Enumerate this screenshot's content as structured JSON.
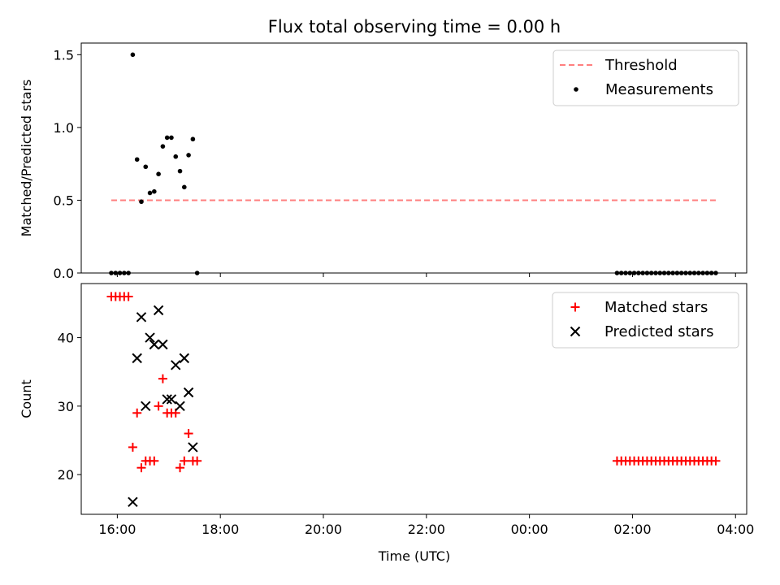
{
  "figure": {
    "title": "Flux total observing time = 0.00 h"
  },
  "chart_data": [
    {
      "type": "line+scatter",
      "panel": "top",
      "xlabel": "",
      "ylabel": "Matched/Predicted stars",
      "xlim": [
        "15:18",
        "04:13"
      ],
      "ylim": [
        0,
        1.58
      ],
      "yticks": [
        0.0,
        0.5,
        1.0,
        1.5
      ],
      "xticks": [
        "16:00",
        "18:00",
        "20:00",
        "22:00",
        "00:00",
        "02:00",
        "04:00"
      ],
      "xticklabels_visible": false,
      "legend_position": "top-right",
      "threshold": {
        "name": "Threshold",
        "color": "#ff7f7f",
        "style": "dashed",
        "y": 0.5,
        "x_range": [
          "15:53",
          "03:37"
        ]
      },
      "series": [
        {
          "name": "Measurements",
          "marker": "dot",
          "color": "#000000",
          "points": [
            [
              "15:53",
              0.0
            ],
            [
              "15:58",
              0.0
            ],
            [
              "16:03",
              0.0
            ],
            [
              "16:08",
              0.0
            ],
            [
              "16:13",
              0.0
            ],
            [
              "16:18",
              1.5
            ],
            [
              "16:23",
              0.78
            ],
            [
              "16:28",
              0.49
            ],
            [
              "16:33",
              0.73
            ],
            [
              "16:38",
              0.55
            ],
            [
              "16:43",
              0.56
            ],
            [
              "16:48",
              0.68
            ],
            [
              "16:53",
              0.87
            ],
            [
              "16:58",
              0.93
            ],
            [
              "17:03",
              0.93
            ],
            [
              "17:08",
              0.8
            ],
            [
              "17:13",
              0.7
            ],
            [
              "17:18",
              0.59
            ],
            [
              "17:23",
              0.81
            ],
            [
              "17:28",
              0.92
            ],
            [
              "17:33",
              0.0
            ],
            [
              "01:42",
              0.0
            ],
            [
              "01:47",
              0.0
            ],
            [
              "01:52",
              0.0
            ],
            [
              "01:57",
              0.0
            ],
            [
              "02:02",
              0.0
            ],
            [
              "02:07",
              0.0
            ],
            [
              "02:12",
              0.0
            ],
            [
              "02:17",
              0.0
            ],
            [
              "02:22",
              0.0
            ],
            [
              "02:27",
              0.0
            ],
            [
              "02:32",
              0.0
            ],
            [
              "02:37",
              0.0
            ],
            [
              "02:42",
              0.0
            ],
            [
              "02:47",
              0.0
            ],
            [
              "02:52",
              0.0
            ],
            [
              "02:57",
              0.0
            ],
            [
              "03:02",
              0.0
            ],
            [
              "03:07",
              0.0
            ],
            [
              "03:12",
              0.0
            ],
            [
              "03:17",
              0.0
            ],
            [
              "03:22",
              0.0
            ],
            [
              "03:27",
              0.0
            ],
            [
              "03:32",
              0.0
            ],
            [
              "03:37",
              0.0
            ]
          ]
        }
      ]
    },
    {
      "type": "scatter",
      "panel": "bottom",
      "xlabel": "Time (UTC)",
      "ylabel": "Count",
      "xlim": [
        "15:18",
        "04:13"
      ],
      "ylim": [
        14.2,
        47.9
      ],
      "yticks": [
        20,
        30,
        40
      ],
      "xticks": [
        "16:00",
        "18:00",
        "20:00",
        "22:00",
        "00:00",
        "02:00",
        "04:00"
      ],
      "legend_position": "top-right",
      "series": [
        {
          "name": "Matched stars",
          "marker": "plus",
          "color": "#ff0000",
          "points": [
            [
              "15:53",
              46
            ],
            [
              "15:58",
              46
            ],
            [
              "16:03",
              46
            ],
            [
              "16:08",
              46
            ],
            [
              "16:13",
              46
            ],
            [
              "16:18",
              24
            ],
            [
              "16:23",
              29
            ],
            [
              "16:28",
              21
            ],
            [
              "16:33",
              22
            ],
            [
              "16:38",
              22
            ],
            [
              "16:43",
              22
            ],
            [
              "16:48",
              30
            ],
            [
              "16:53",
              34
            ],
            [
              "16:58",
              29
            ],
            [
              "17:03",
              29
            ],
            [
              "17:08",
              29
            ],
            [
              "17:13",
              21
            ],
            [
              "17:18",
              22
            ],
            [
              "17:23",
              26
            ],
            [
              "17:28",
              22
            ],
            [
              "17:33",
              22
            ],
            [
              "01:42",
              22
            ],
            [
              "01:47",
              22
            ],
            [
              "01:52",
              22
            ],
            [
              "01:57",
              22
            ],
            [
              "02:02",
              22
            ],
            [
              "02:07",
              22
            ],
            [
              "02:12",
              22
            ],
            [
              "02:17",
              22
            ],
            [
              "02:22",
              22
            ],
            [
              "02:27",
              22
            ],
            [
              "02:32",
              22
            ],
            [
              "02:37",
              22
            ],
            [
              "02:42",
              22
            ],
            [
              "02:47",
              22
            ],
            [
              "02:52",
              22
            ],
            [
              "02:57",
              22
            ],
            [
              "03:02",
              22
            ],
            [
              "03:07",
              22
            ],
            [
              "03:12",
              22
            ],
            [
              "03:17",
              22
            ],
            [
              "03:22",
              22
            ],
            [
              "03:27",
              22
            ],
            [
              "03:32",
              22
            ],
            [
              "03:37",
              22
            ]
          ]
        },
        {
          "name": "Predicted stars",
          "marker": "x",
          "color": "#000000",
          "points": [
            [
              "16:18",
              16
            ],
            [
              "16:23",
              37
            ],
            [
              "16:28",
              43
            ],
            [
              "16:33",
              30
            ],
            [
              "16:38",
              40
            ],
            [
              "16:43",
              39
            ],
            [
              "16:48",
              44
            ],
            [
              "16:53",
              39
            ],
            [
              "16:58",
              31
            ],
            [
              "17:03",
              31
            ],
            [
              "17:08",
              36
            ],
            [
              "17:13",
              30
            ],
            [
              "17:18",
              37
            ],
            [
              "17:23",
              32
            ],
            [
              "17:28",
              24
            ]
          ]
        }
      ]
    }
  ]
}
